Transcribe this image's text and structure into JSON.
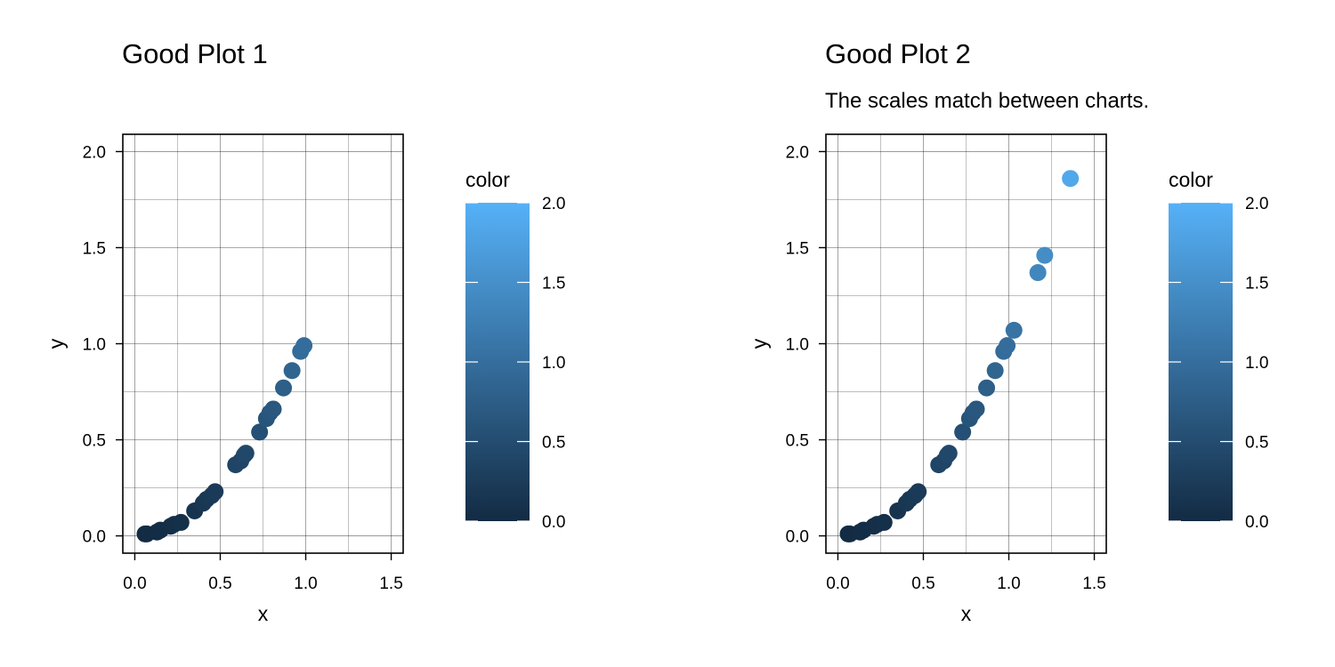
{
  "chart_data": [
    {
      "type": "scatter",
      "title": "Good Plot 1",
      "subtitle": "",
      "xlabel": "x",
      "ylabel": "y",
      "xlim": [
        -0.07,
        1.57
      ],
      "ylim": [
        -0.09,
        2.09
      ],
      "xticks": [
        0.0,
        0.5,
        1.0,
        1.5
      ],
      "xtick_labels": [
        "0.0",
        "0.5",
        "1.0",
        "1.5"
      ],
      "yticks": [
        0.0,
        0.5,
        1.0,
        1.5,
        2.0
      ],
      "ytick_labels": [
        "0.0",
        "0.5",
        "1.0",
        "1.5",
        "2.0"
      ],
      "grid": true,
      "legend": {
        "title": "color",
        "type": "colorbar",
        "range": [
          0,
          2
        ],
        "ticks": [
          0.0,
          0.5,
          1.0,
          1.5,
          2.0
        ],
        "tick_labels": [
          "0.0",
          "0.5",
          "1.0",
          "1.5",
          "2.0"
        ],
        "color_low": "#132B43",
        "color_high": "#56B1F7",
        "placement": "right"
      },
      "points": [
        {
          "x": 0.06,
          "y": 0.01
        },
        {
          "x": 0.07,
          "y": 0.01
        },
        {
          "x": 0.13,
          "y": 0.02
        },
        {
          "x": 0.15,
          "y": 0.03
        },
        {
          "x": 0.21,
          "y": 0.05
        },
        {
          "x": 0.23,
          "y": 0.06
        },
        {
          "x": 0.27,
          "y": 0.07
        },
        {
          "x": 0.35,
          "y": 0.13
        },
        {
          "x": 0.4,
          "y": 0.17
        },
        {
          "x": 0.42,
          "y": 0.19
        },
        {
          "x": 0.45,
          "y": 0.21
        },
        {
          "x": 0.47,
          "y": 0.23
        },
        {
          "x": 0.59,
          "y": 0.37
        },
        {
          "x": 0.62,
          "y": 0.39
        },
        {
          "x": 0.64,
          "y": 0.42
        },
        {
          "x": 0.65,
          "y": 0.43
        },
        {
          "x": 0.73,
          "y": 0.54
        },
        {
          "x": 0.77,
          "y": 0.61
        },
        {
          "x": 0.79,
          "y": 0.64
        },
        {
          "x": 0.81,
          "y": 0.66
        },
        {
          "x": 0.87,
          "y": 0.77
        },
        {
          "x": 0.92,
          "y": 0.86
        },
        {
          "x": 0.97,
          "y": 0.96
        },
        {
          "x": 0.99,
          "y": 0.99
        }
      ]
    },
    {
      "type": "scatter",
      "title": "Good Plot 2",
      "subtitle": "The scales match between charts.",
      "xlabel": "x",
      "ylabel": "y",
      "xlim": [
        -0.07,
        1.57
      ],
      "ylim": [
        -0.09,
        2.09
      ],
      "xticks": [
        0.0,
        0.5,
        1.0,
        1.5
      ],
      "xtick_labels": [
        "0.0",
        "0.5",
        "1.0",
        "1.5"
      ],
      "yticks": [
        0.0,
        0.5,
        1.0,
        1.5,
        2.0
      ],
      "ytick_labels": [
        "0.0",
        "0.5",
        "1.0",
        "1.5",
        "2.0"
      ],
      "grid": true,
      "legend": {
        "title": "color",
        "type": "colorbar",
        "range": [
          0,
          2
        ],
        "ticks": [
          0.0,
          0.5,
          1.0,
          1.5,
          2.0
        ],
        "tick_labels": [
          "0.0",
          "0.5",
          "1.0",
          "1.5",
          "2.0"
        ],
        "color_low": "#132B43",
        "color_high": "#56B1F7",
        "placement": "right"
      },
      "points": [
        {
          "x": 0.06,
          "y": 0.01
        },
        {
          "x": 0.07,
          "y": 0.01
        },
        {
          "x": 0.13,
          "y": 0.02
        },
        {
          "x": 0.15,
          "y": 0.03
        },
        {
          "x": 0.21,
          "y": 0.05
        },
        {
          "x": 0.23,
          "y": 0.06
        },
        {
          "x": 0.27,
          "y": 0.07
        },
        {
          "x": 0.35,
          "y": 0.13
        },
        {
          "x": 0.4,
          "y": 0.17
        },
        {
          "x": 0.42,
          "y": 0.19
        },
        {
          "x": 0.45,
          "y": 0.21
        },
        {
          "x": 0.47,
          "y": 0.23
        },
        {
          "x": 0.59,
          "y": 0.37
        },
        {
          "x": 0.62,
          "y": 0.39
        },
        {
          "x": 0.64,
          "y": 0.42
        },
        {
          "x": 0.65,
          "y": 0.43
        },
        {
          "x": 0.73,
          "y": 0.54
        },
        {
          "x": 0.77,
          "y": 0.61
        },
        {
          "x": 0.79,
          "y": 0.64
        },
        {
          "x": 0.81,
          "y": 0.66
        },
        {
          "x": 0.87,
          "y": 0.77
        },
        {
          "x": 0.92,
          "y": 0.86
        },
        {
          "x": 0.97,
          "y": 0.96
        },
        {
          "x": 0.99,
          "y": 0.99
        },
        {
          "x": 1.03,
          "y": 1.07
        },
        {
          "x": 1.17,
          "y": 1.37
        },
        {
          "x": 1.21,
          "y": 1.46
        },
        {
          "x": 1.36,
          "y": 1.86
        }
      ]
    }
  ]
}
